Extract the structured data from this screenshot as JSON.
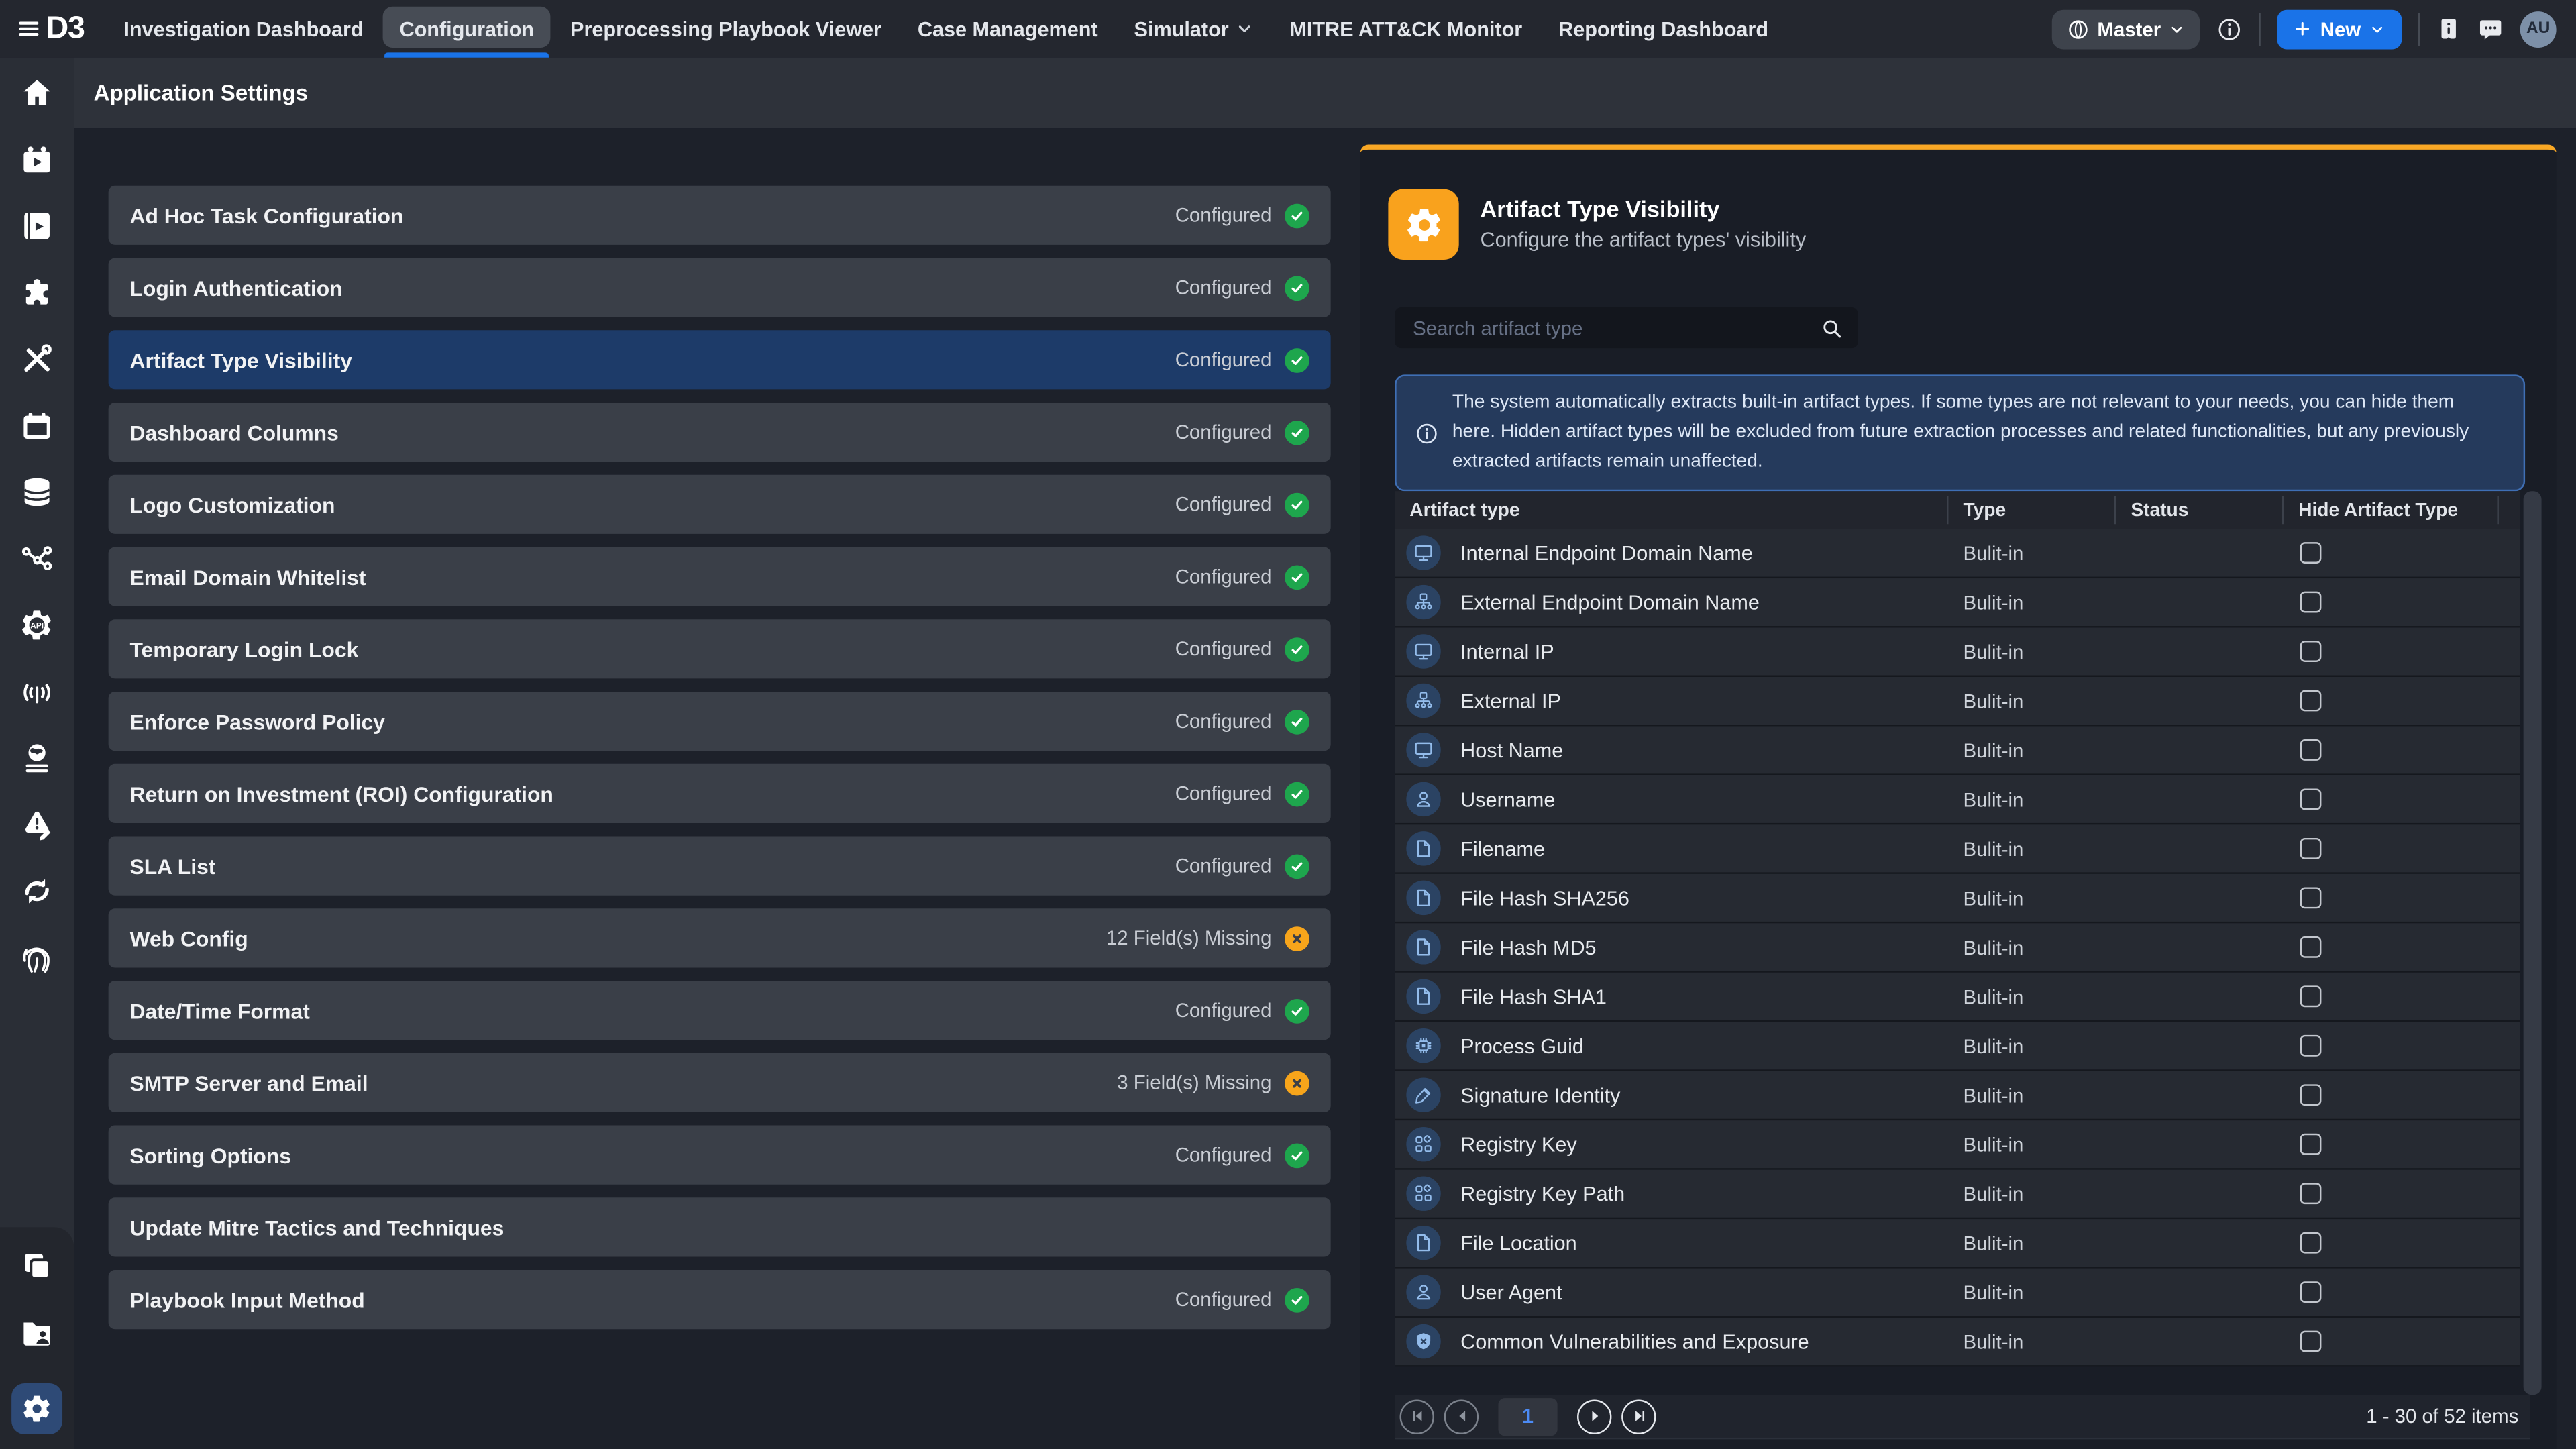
{
  "nav": {
    "logo_text": "D3",
    "tabs": [
      {
        "label": "Investigation Dashboard"
      },
      {
        "label": "Configuration",
        "active": true
      },
      {
        "label": "Preprocessing Playbook Viewer"
      },
      {
        "label": "Case Management"
      },
      {
        "label": "Simulator",
        "chevron": true
      },
      {
        "label": "MITRE ATT&CK Monitor"
      },
      {
        "label": "Reporting Dashboard"
      }
    ],
    "master_label": "Master",
    "new_button_label": "New",
    "avatar_initials": "AU"
  },
  "page_title": "Application Settings",
  "sidebar": {
    "top_icons": [
      "home",
      "calendar-play",
      "book-play",
      "puzzle",
      "tools",
      "calendar",
      "database",
      "share-nodes",
      "api-gear",
      "antenna",
      "globe-lines",
      "alert-edit",
      "sync",
      "fingerprint"
    ],
    "bottom_icons": [
      "copy",
      "folder-user"
    ],
    "active_icon": "gear"
  },
  "settings_list": [
    {
      "title": "Ad Hoc Task Configuration",
      "status": "Configured",
      "status_type": "ok"
    },
    {
      "title": "Login Authentication",
      "status": "Configured",
      "status_type": "ok"
    },
    {
      "title": "Artifact Type Visibility",
      "status": "Configured",
      "status_type": "ok",
      "selected": true
    },
    {
      "title": "Dashboard Columns",
      "status": "Configured",
      "status_type": "ok"
    },
    {
      "title": "Logo Customization",
      "status": "Configured",
      "status_type": "ok"
    },
    {
      "title": "Email Domain Whitelist",
      "status": "Configured",
      "status_type": "ok"
    },
    {
      "title": "Temporary Login Lock",
      "status": "Configured",
      "status_type": "ok"
    },
    {
      "title": "Enforce Password Policy",
      "status": "Configured",
      "status_type": "ok"
    },
    {
      "title": "Return on Investment (ROI) Configuration",
      "status": "Configured",
      "status_type": "ok"
    },
    {
      "title": "SLA List",
      "status": "Configured",
      "status_type": "ok"
    },
    {
      "title": "Web Config",
      "status": "12 Field(s) Missing",
      "status_type": "warn"
    },
    {
      "title": "Date/Time Format",
      "status": "Configured",
      "status_type": "ok"
    },
    {
      "title": "SMTP Server and Email",
      "status": "3 Field(s) Missing",
      "status_type": "warn"
    },
    {
      "title": "Sorting Options",
      "status": "Configured",
      "status_type": "ok"
    },
    {
      "title": "Update Mitre Tactics and Techniques",
      "status": "",
      "status_type": "none"
    },
    {
      "title": "Playbook Input Method",
      "status": "Configured",
      "status_type": "ok"
    }
  ],
  "panel": {
    "title": "Artifact Type Visibility",
    "subtitle": "Configure the artifact types' visibility",
    "search_placeholder": "Search artifact type",
    "info_text": "The system automatically extracts built-in artifact types. If some types are not relevant to your needs, you can hide them here. Hidden artifact types will be excluded from future extraction processes and related functionalities, but any previously extracted artifacts remain unaffected.",
    "table": {
      "columns": [
        "Artifact type",
        "Type",
        "Status",
        "Hide Artifact Type"
      ],
      "rows": [
        {
          "name": "Internal Endpoint Domain Name",
          "icon": "monitor",
          "type": "Bulit-in",
          "status": "",
          "hidden": false
        },
        {
          "name": "External Endpoint Domain Name",
          "icon": "sitemap",
          "type": "Bulit-in",
          "status": "",
          "hidden": false
        },
        {
          "name": "Internal IP",
          "icon": "monitor",
          "type": "Bulit-in",
          "status": "",
          "hidden": false
        },
        {
          "name": "External IP",
          "icon": "sitemap",
          "type": "Bulit-in",
          "status": "",
          "hidden": false
        },
        {
          "name": "Host Name",
          "icon": "monitor",
          "type": "Bulit-in",
          "status": "",
          "hidden": false
        },
        {
          "name": "Username",
          "icon": "user",
          "type": "Bulit-in",
          "status": "",
          "hidden": false
        },
        {
          "name": "Filename",
          "icon": "file",
          "type": "Bulit-in",
          "status": "",
          "hidden": false
        },
        {
          "name": "File Hash SHA256",
          "icon": "file",
          "type": "Bulit-in",
          "status": "",
          "hidden": false
        },
        {
          "name": "File Hash MD5",
          "icon": "file",
          "type": "Bulit-in",
          "status": "",
          "hidden": false
        },
        {
          "name": "File Hash SHA1",
          "icon": "file",
          "type": "Bulit-in",
          "status": "",
          "hidden": false
        },
        {
          "name": "Process Guid",
          "icon": "chip",
          "type": "Bulit-in",
          "status": "",
          "hidden": false
        },
        {
          "name": "Signature Identity",
          "icon": "pen",
          "type": "Bulit-in",
          "status": "",
          "hidden": false
        },
        {
          "name": "Registry Key",
          "icon": "apps",
          "type": "Bulit-in",
          "status": "",
          "hidden": false
        },
        {
          "name": "Registry Key Path",
          "icon": "apps",
          "type": "Bulit-in",
          "status": "",
          "hidden": false
        },
        {
          "name": "File Location",
          "icon": "file",
          "type": "Bulit-in",
          "status": "",
          "hidden": false
        },
        {
          "name": "User Agent",
          "icon": "user",
          "type": "Bulit-in",
          "status": "",
          "hidden": false
        },
        {
          "name": "Common Vulnerabilities and Exposure",
          "icon": "shield-x",
          "type": "Bulit-in",
          "status": "",
          "hidden": false
        }
      ]
    },
    "pagination": {
      "current_page": "1",
      "summary": "1 - 30 of 52 items"
    }
  },
  "colors": {
    "accent_blue": "#1a73e8",
    "panel_accent_orange": "#f9a825",
    "status_ok_green": "#1ea64d",
    "status_warn_orange": "#f7a51b",
    "selected_item_navy": "#1d3b69"
  }
}
